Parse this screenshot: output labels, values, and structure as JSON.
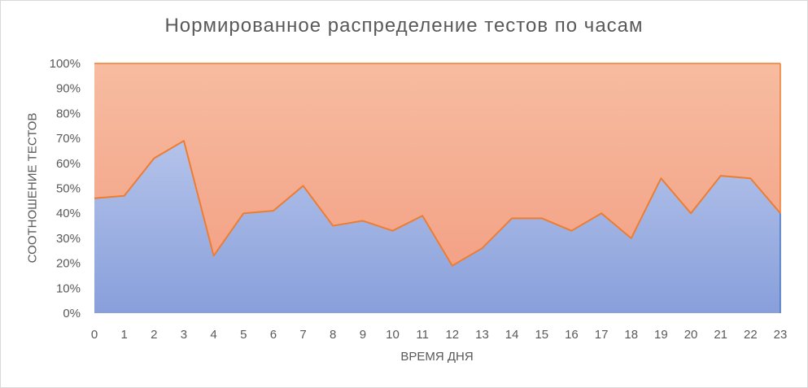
{
  "chart_data": {
    "type": "area",
    "stacked": "100%",
    "title": "Нормированное распределение тестов по часам",
    "xlabel": "ВРЕМЯ ДНЯ",
    "ylabel": "СООТНОШЕНИЕ ТЕСТОВ",
    "x": [
      0,
      1,
      2,
      3,
      4,
      5,
      6,
      7,
      8,
      9,
      10,
      11,
      12,
      13,
      14,
      15,
      16,
      17,
      18,
      19,
      20,
      21,
      22,
      23
    ],
    "x_tick_labels": [
      "0",
      "1",
      "2",
      "3",
      "4",
      "5",
      "6",
      "7",
      "8",
      "9",
      "10",
      "11",
      "12",
      "13",
      "14",
      "15",
      "16",
      "17",
      "18",
      "19",
      "20",
      "21",
      "22",
      "23"
    ],
    "y_tick_labels": [
      "0%",
      "10%",
      "20%",
      "30%",
      "40%",
      "50%",
      "60%",
      "70%",
      "80%",
      "90%",
      "100%"
    ],
    "ylim": [
      0,
      100
    ],
    "grid": false,
    "series": [
      {
        "values": [
          46,
          47,
          62,
          69,
          23,
          40,
          41,
          51,
          35,
          37,
          33,
          39,
          19,
          26,
          38,
          38,
          33,
          40,
          30,
          54,
          40,
          55,
          54,
          40
        ],
        "color": "#8ea4dc"
      },
      {
        "values": [
          54,
          53,
          38,
          31,
          77,
          60,
          59,
          49,
          65,
          63,
          67,
          61,
          81,
          74,
          62,
          62,
          67,
          60,
          70,
          46,
          60,
          45,
          46,
          60
        ],
        "color": "#f5ad8e"
      }
    ],
    "boundary_line_color": "#ed7d31"
  }
}
